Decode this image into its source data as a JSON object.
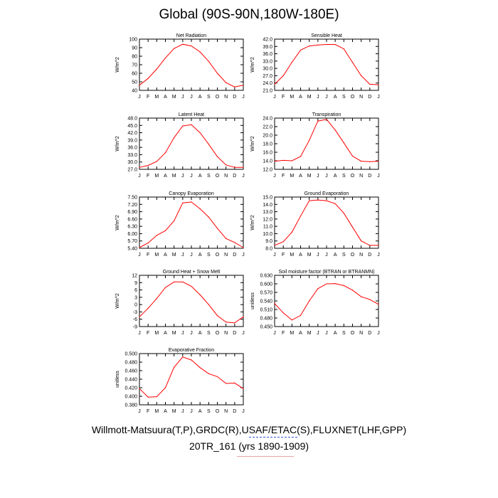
{
  "page": {
    "title": "Global (90S-90N,180W-180E)",
    "footer_line1": "Willmott-Matsuura(T,P),GRDC(R),USAF/ETAC(S),FLUXNET(LHF,GPP)",
    "footer_line2": "20TR_161 (yrs 1890-1909)"
  },
  "colors": {
    "series": "#ff0000",
    "axis": "#000000"
  },
  "chart_data": [
    {
      "type": "line",
      "title": "Net Radiation",
      "ylabel": "W/m^2",
      "categories": [
        "J",
        "F",
        "M",
        "A",
        "M",
        "J",
        "J",
        "A",
        "S",
        "O",
        "N",
        "D",
        "J"
      ],
      "values": [
        46,
        54,
        65,
        78,
        89,
        94,
        92,
        85,
        74,
        60,
        49,
        44,
        46
      ],
      "ylim": [
        40,
        100
      ],
      "yticks": [
        40,
        50,
        60,
        70,
        80,
        90,
        100
      ],
      "ytick_labels": [
        "40",
        "50",
        "60",
        "70",
        "80",
        "90",
        "100"
      ]
    },
    {
      "type": "line",
      "title": "Sensible Heat",
      "ylabel": "W/m^2",
      "categories": [
        "J",
        "F",
        "M",
        "A",
        "M",
        "J",
        "J",
        "A",
        "S",
        "O",
        "N",
        "D",
        "J"
      ],
      "values": [
        23.5,
        27,
        32.5,
        37.5,
        39.2,
        39.6,
        39.8,
        39.8,
        38,
        32.5,
        27,
        23.5,
        23.3
      ],
      "ylim": [
        21,
        42
      ],
      "yticks": [
        21,
        24,
        27,
        30,
        33,
        36,
        39,
        42
      ],
      "ytick_labels": [
        "21.0",
        "24.0",
        "27.0",
        "30.0",
        "33.0",
        "36.0",
        "39.0",
        "42.0"
      ]
    },
    {
      "type": "line",
      "title": "Latent Heat",
      "ylabel": "W/m^2",
      "categories": [
        "J",
        "F",
        "M",
        "A",
        "M",
        "J",
        "J",
        "A",
        "S",
        "O",
        "N",
        "D",
        "J"
      ],
      "values": [
        27.8,
        28.6,
        30.2,
        33.8,
        40,
        44.8,
        45.3,
        42,
        37.3,
        32.2,
        28.8,
        27.8,
        27.8
      ],
      "ylim": [
        27,
        48
      ],
      "yticks": [
        27,
        30,
        33,
        36,
        39,
        42,
        45,
        48
      ],
      "ytick_labels": [
        "27.0",
        "30.0",
        "33.0",
        "36.0",
        "39.0",
        "42.0",
        "45.0",
        "48.0"
      ]
    },
    {
      "type": "line",
      "title": "Transpiration",
      "ylabel": "W/m^2",
      "categories": [
        "J",
        "F",
        "M",
        "A",
        "M",
        "J",
        "J",
        "A",
        "S",
        "O",
        "N",
        "D",
        "J"
      ],
      "values": [
        13.9,
        14.1,
        14.0,
        15.0,
        18.8,
        23.3,
        23.7,
        21.2,
        18.2,
        15.1,
        13.9,
        13.8,
        13.9
      ],
      "ylim": [
        12,
        24
      ],
      "yticks": [
        12,
        14,
        16,
        18,
        20,
        22,
        24
      ],
      "ytick_labels": [
        "12.0",
        "14.0",
        "16.0",
        "18.0",
        "20.0",
        "22.0",
        "24.0"
      ]
    },
    {
      "type": "line",
      "title": "Canopy Evaporation",
      "ylabel": "W/m^2",
      "categories": [
        "J",
        "F",
        "M",
        "A",
        "M",
        "J",
        "J",
        "A",
        "S",
        "O",
        "N",
        "D",
        "J"
      ],
      "values": [
        5.43,
        5.62,
        5.93,
        6.12,
        6.53,
        7.26,
        7.3,
        7.02,
        6.68,
        6.22,
        5.8,
        5.64,
        5.43
      ],
      "ylim": [
        5.4,
        7.5
      ],
      "yticks": [
        5.4,
        5.7,
        6.0,
        6.3,
        6.6,
        6.9,
        7.2,
        7.5
      ],
      "ytick_labels": [
        "5.40",
        "5.70",
        "6.00",
        "6.30",
        "6.60",
        "6.90",
        "7.20",
        "7.50"
      ]
    },
    {
      "type": "line",
      "title": "Ground Evaporation",
      "ylabel": "W/m^2",
      "categories": [
        "J",
        "F",
        "M",
        "A",
        "M",
        "J",
        "J",
        "A",
        "S",
        "O",
        "N",
        "D",
        "J"
      ],
      "values": [
        8.4,
        8.9,
        10.2,
        12.4,
        14.5,
        14.6,
        14.5,
        14.1,
        12.8,
        10.9,
        9.0,
        8.4,
        8.4
      ],
      "ylim": [
        8,
        15
      ],
      "yticks": [
        8,
        9,
        10,
        11,
        12,
        13,
        14,
        15
      ],
      "ytick_labels": [
        "8.0",
        "9.0",
        "10.0",
        "11.0",
        "12.0",
        "13.0",
        "14.0",
        "15.0"
      ]
    },
    {
      "type": "line",
      "title": "Ground Heat + Snow Melt",
      "ylabel": "W/m^2",
      "categories": [
        "J",
        "F",
        "M",
        "A",
        "M",
        "J",
        "J",
        "A",
        "S",
        "O",
        "N",
        "D",
        "J"
      ],
      "values": [
        -5,
        -1.5,
        2.5,
        7,
        9.3,
        9.3,
        7.5,
        4,
        0,
        -4.5,
        -7.2,
        -7.5,
        -5
      ],
      "ylim": [
        -9,
        12
      ],
      "yticks": [
        -9,
        -6,
        -3,
        0,
        3,
        6,
        9,
        12
      ],
      "ytick_labels": [
        "-9",
        "-6",
        "-3",
        "0",
        "3",
        "6",
        "9",
        "12"
      ]
    },
    {
      "type": "line",
      "title": "Soil moisture factor (BTRAN or BTRANMN)",
      "ylabel": "unitless",
      "categories": [
        "J",
        "F",
        "M",
        "A",
        "M",
        "J",
        "J",
        "A",
        "S",
        "O",
        "N",
        "D",
        "J"
      ],
      "values": [
        0.531,
        0.498,
        0.473,
        0.489,
        0.54,
        0.583,
        0.6,
        0.601,
        0.594,
        0.578,
        0.555,
        0.545,
        0.528
      ],
      "ylim": [
        0.45,
        0.63
      ],
      "yticks": [
        0.45,
        0.48,
        0.51,
        0.54,
        0.57,
        0.6,
        0.63
      ],
      "ytick_labels": [
        "0.450",
        "0.480",
        "0.510",
        "0.540",
        "0.570",
        "0.600",
        "0.630"
      ]
    },
    {
      "type": "line",
      "title": "Evaporative Fraction",
      "ylabel": "unitless",
      "categories": [
        "J",
        "F",
        "M",
        "A",
        "M",
        "J",
        "J",
        "A",
        "S",
        "O",
        "N",
        "D",
        "J"
      ],
      "values": [
        0.418,
        0.398,
        0.399,
        0.42,
        0.468,
        0.492,
        0.485,
        0.467,
        0.453,
        0.446,
        0.43,
        0.431,
        0.418
      ],
      "ylim": [
        0.38,
        0.5
      ],
      "yticks": [
        0.38,
        0.4,
        0.42,
        0.44,
        0.46,
        0.48,
        0.5
      ],
      "ytick_labels": [
        "0.380",
        "0.400",
        "0.420",
        "0.440",
        "0.460",
        "0.480",
        "0.500"
      ]
    }
  ]
}
